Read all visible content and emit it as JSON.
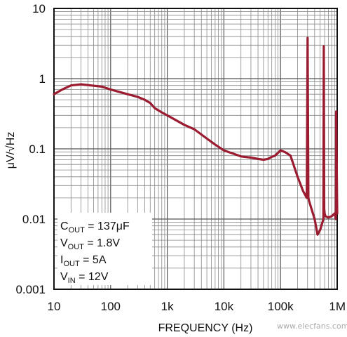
{
  "chart_data": {
    "type": "line",
    "x_scale": "log",
    "y_scale": "log",
    "xlim": [
      10,
      1000000
    ],
    "ylim": [
      0.001,
      10
    ],
    "grid": true,
    "xlabel": "FREQUENCY (Hz)",
    "ylabel": "μV/√Hz",
    "x_ticks": [
      {
        "value": 10,
        "label": "10"
      },
      {
        "value": 100,
        "label": "100"
      },
      {
        "value": 1000,
        "label": "1k"
      },
      {
        "value": 10000,
        "label": "10k"
      },
      {
        "value": 100000,
        "label": "100k"
      },
      {
        "value": 1000000,
        "label": "1M"
      }
    ],
    "y_ticks": [
      {
        "value": 10,
        "label": "10"
      },
      {
        "value": 1,
        "label": "1"
      },
      {
        "value": 0.1,
        "label": "0.1"
      },
      {
        "value": 0.01,
        "label": "0.01"
      },
      {
        "value": 0.001,
        "label": "0.001"
      }
    ],
    "annotations": [
      {
        "main": "C",
        "sub": "OUT",
        "rest": " = 137μF"
      },
      {
        "main": "V",
        "sub": "OUT",
        "rest": " = 1.8V"
      },
      {
        "main": "I",
        "sub": "OUT",
        "rest": " = 5A"
      },
      {
        "main": "V",
        "sub": "IN",
        "rest": " = 12V"
      }
    ],
    "watermark": "www.elecfans.com",
    "line_color": "#9b1b30",
    "series": [
      {
        "x": [
          10,
          14,
          20,
          30,
          45,
          70,
          100,
          150,
          200,
          300,
          400,
          500,
          600,
          800,
          1000,
          1500,
          2000,
          3000,
          5000,
          7000,
          10000,
          15000,
          20000,
          30000,
          40000,
          50000,
          60000,
          70000,
          80000,
          100000,
          120000,
          150000,
          200000,
          250000,
          290000,
          300000,
          310000,
          320000,
          400000,
          450000,
          500000,
          550000,
          570000,
          580000,
          590000,
          600000,
          620000,
          700000,
          800000,
          900000,
          950000,
          960000,
          1000000
        ],
        "y": [
          0.6,
          0.7,
          0.8,
          0.83,
          0.8,
          0.77,
          0.7,
          0.64,
          0.6,
          0.55,
          0.5,
          0.45,
          0.38,
          0.33,
          0.3,
          0.25,
          0.22,
          0.19,
          0.14,
          0.115,
          0.095,
          0.085,
          0.078,
          0.075,
          0.072,
          0.07,
          0.072,
          0.077,
          0.08,
          0.095,
          0.09,
          0.08,
          0.04,
          0.025,
          0.02,
          3.8,
          0.02,
          0.018,
          0.01,
          0.006,
          0.007,
          0.009,
          0.01,
          2.9,
          0.014,
          0.012,
          0.011,
          0.0105,
          0.011,
          0.012,
          0.01,
          0.34,
          0.012
        ]
      }
    ]
  }
}
